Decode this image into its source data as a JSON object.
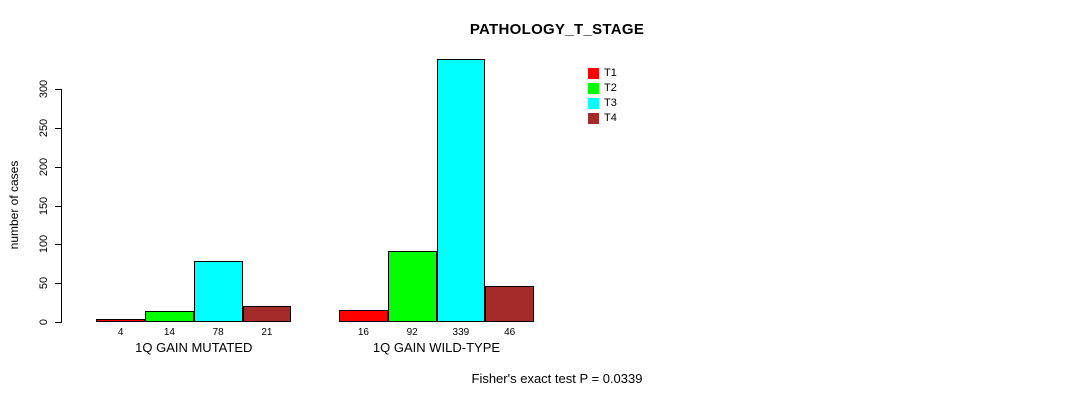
{
  "chart_data": {
    "type": "bar",
    "title": "PATHOLOGY_T_STAGE",
    "ylabel": "number of cases",
    "xlabel": "",
    "categories": [
      "1Q GAIN MUTATED",
      "1Q GAIN WILD-TYPE"
    ],
    "series": [
      {
        "name": "T1",
        "color": "#ff0000",
        "values": [
          4,
          16
        ]
      },
      {
        "name": "T2",
        "color": "#00ff00",
        "values": [
          14,
          92
        ]
      },
      {
        "name": "T3",
        "color": "#00ffff",
        "values": [
          78,
          339
        ]
      },
      {
        "name": "T4",
        "color": "#a52a2a",
        "values": [
          21,
          46
        ]
      }
    ],
    "yticks": [
      0,
      50,
      100,
      150,
      200,
      250,
      300
    ],
    "ylim": [
      0,
      339
    ],
    "grid": false,
    "bar_border_color": "#000000",
    "legend_position": "top-right",
    "annotation": "Fisher's exact test P = 0.0339"
  }
}
